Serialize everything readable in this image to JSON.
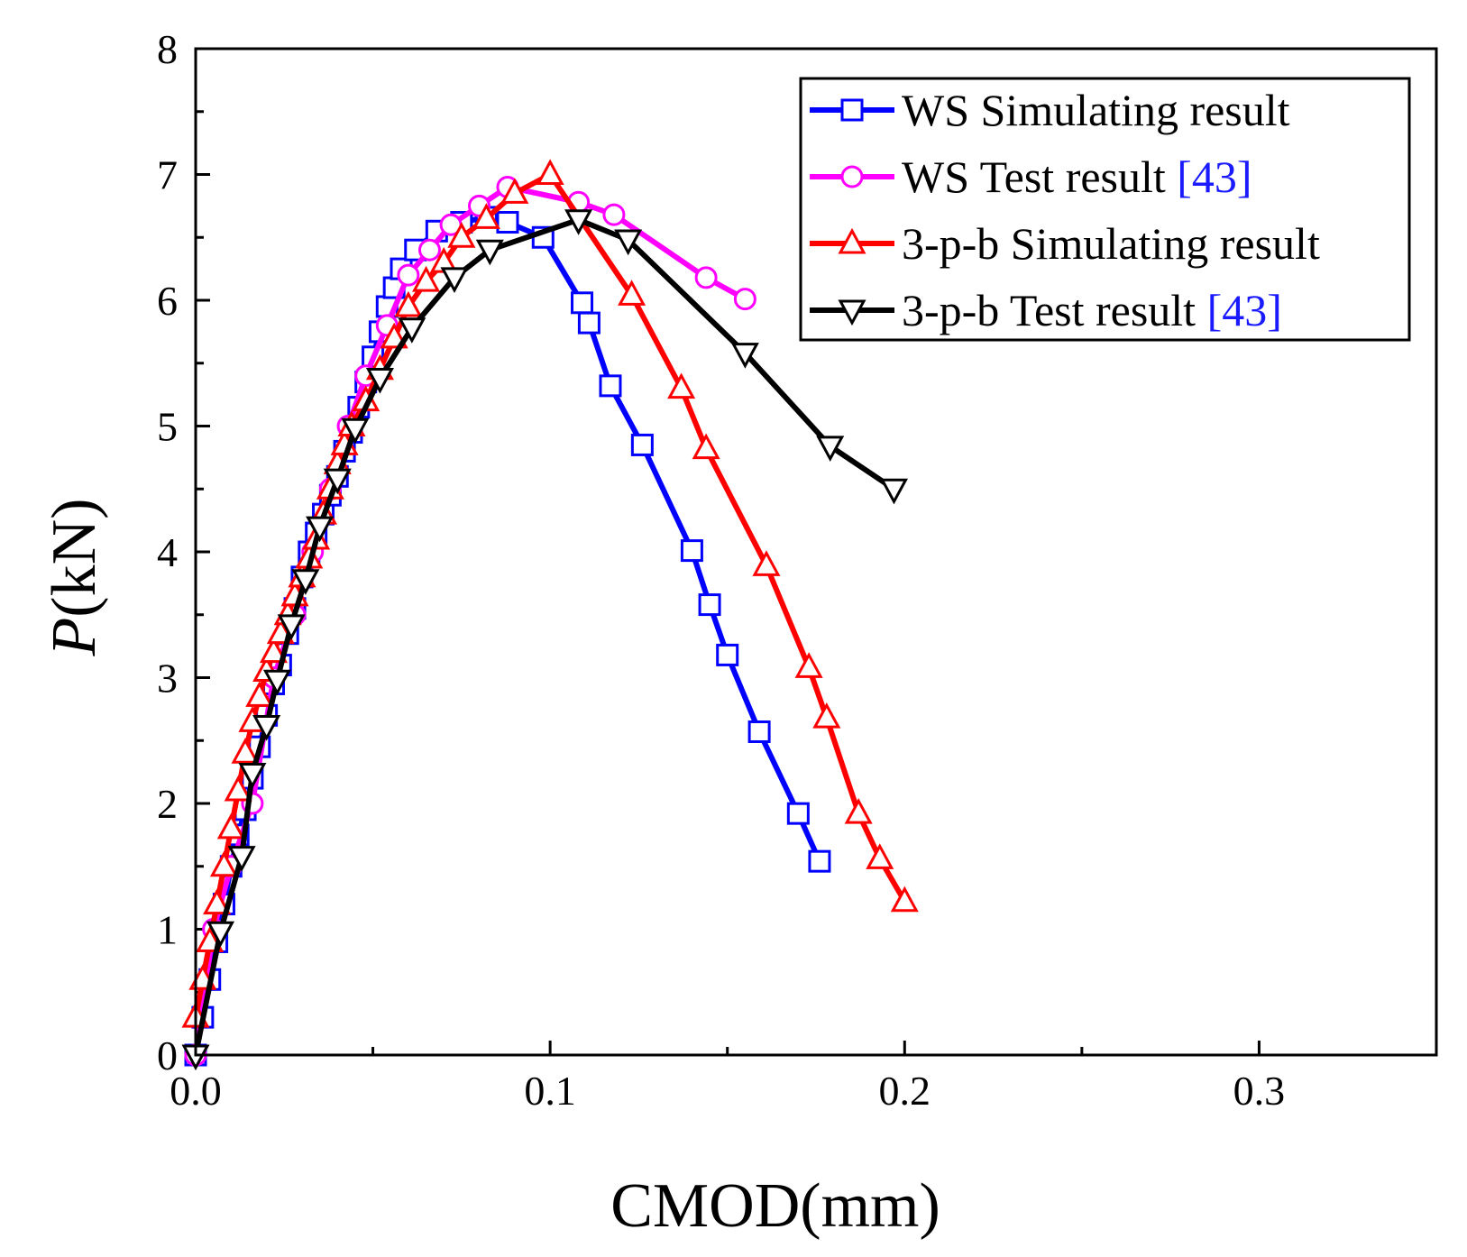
{
  "chart_data": {
    "type": "line",
    "xlabel": "CMOD(mm)",
    "ylabel_italic": "P",
    "ylabel_unit": "(kN)",
    "xlim": [
      0,
      0.35
    ],
    "ylim": [
      0,
      8
    ],
    "xticks": [
      0.0,
      0.1,
      0.2,
      0.3
    ],
    "xtick_labels": [
      "0.0",
      "0.1",
      "0.2",
      "0.3"
    ],
    "yticks": [
      0,
      1,
      2,
      3,
      4,
      5,
      6,
      7,
      8
    ],
    "ytick_labels": [
      "0",
      "1",
      "2",
      "3",
      "4",
      "5",
      "6",
      "7",
      "8"
    ],
    "x_minor_step": 0.05,
    "y_minor_step": 0.5,
    "legend_position": "top-right",
    "series": [
      {
        "name": "WS Simulating result",
        "ref": "",
        "color": "#0000ff",
        "marker": "square",
        "x": [
          0.0,
          0.002,
          0.004,
          0.006,
          0.008,
          0.01,
          0.012,
          0.014,
          0.016,
          0.018,
          0.02,
          0.022,
          0.024,
          0.026,
          0.028,
          0.03,
          0.032,
          0.034,
          0.036,
          0.038,
          0.04,
          0.042,
          0.044,
          0.046,
          0.048,
          0.05,
          0.052,
          0.054,
          0.056,
          0.058,
          0.062,
          0.068,
          0.075,
          0.082,
          0.088,
          0.098,
          0.109,
          0.111,
          0.117,
          0.126,
          0.14,
          0.145,
          0.15,
          0.159,
          0.17,
          0.176
        ],
        "y": [
          0.0,
          0.3,
          0.6,
          0.9,
          1.2,
          1.5,
          1.75,
          1.95,
          2.2,
          2.45,
          2.7,
          2.95,
          3.1,
          3.35,
          3.55,
          3.8,
          4.0,
          4.15,
          4.3,
          4.45,
          4.6,
          4.8,
          4.95,
          5.15,
          5.35,
          5.55,
          5.75,
          5.95,
          6.1,
          6.25,
          6.4,
          6.55,
          6.62,
          6.66,
          6.62,
          6.5,
          5.98,
          5.82,
          5.32,
          4.85,
          4.01,
          3.58,
          3.18,
          2.57,
          1.92,
          1.54
        ]
      },
      {
        "name": "WS Test result ",
        "ref": "[43]",
        "color": "#ff00ff",
        "marker": "circle",
        "x": [
          0.0,
          0.005,
          0.01,
          0.016,
          0.022,
          0.028,
          0.033,
          0.038,
          0.043,
          0.048,
          0.054,
          0.06,
          0.066,
          0.072,
          0.08,
          0.088,
          0.108,
          0.118,
          0.144,
          0.155
        ],
        "y": [
          0.0,
          1.0,
          1.5,
          2.0,
          3.0,
          3.5,
          4.0,
          4.5,
          5.0,
          5.4,
          5.8,
          6.2,
          6.4,
          6.6,
          6.75,
          6.9,
          6.78,
          6.68,
          6.18,
          6.01
        ]
      },
      {
        "name": "3-p-b Simulating result",
        "ref": "",
        "color": "#ff0000",
        "marker": "triangle-up",
        "x": [
          0.0,
          0.002,
          0.004,
          0.006,
          0.008,
          0.01,
          0.012,
          0.014,
          0.016,
          0.018,
          0.02,
          0.022,
          0.024,
          0.026,
          0.028,
          0.03,
          0.032,
          0.034,
          0.036,
          0.038,
          0.04,
          0.042,
          0.044,
          0.048,
          0.052,
          0.056,
          0.06,
          0.065,
          0.07,
          0.075,
          0.082,
          0.09,
          0.1,
          0.123,
          0.137,
          0.144,
          0.161,
          0.173,
          0.178,
          0.187,
          0.193,
          0.2
        ],
        "y": [
          0.3,
          0.6,
          0.9,
          1.2,
          1.5,
          1.8,
          2.1,
          2.4,
          2.65,
          2.85,
          3.05,
          3.2,
          3.35,
          3.5,
          3.65,
          3.8,
          3.95,
          4.1,
          4.3,
          4.5,
          4.7,
          4.85,
          5.0,
          5.2,
          5.45,
          5.7,
          5.95,
          6.15,
          6.3,
          6.5,
          6.65,
          6.85,
          7.0,
          6.04,
          5.3,
          4.82,
          3.89,
          3.08,
          2.68,
          1.92,
          1.56,
          1.22
        ]
      },
      {
        "name": "3-p-b Test result ",
        "ref": "[43]",
        "color": "#000000",
        "marker": "triangle-down",
        "x": [
          0.0,
          0.007,
          0.013,
          0.016,
          0.02,
          0.023,
          0.027,
          0.031,
          0.035,
          0.04,
          0.045,
          0.052,
          0.061,
          0.073,
          0.083,
          0.108,
          0.122,
          0.155,
          0.179,
          0.197
        ],
        "y": [
          0.0,
          0.98,
          1.58,
          2.24,
          2.62,
          2.98,
          3.42,
          3.78,
          4.2,
          4.58,
          4.98,
          5.38,
          5.78,
          6.18,
          6.4,
          6.64,
          6.48,
          5.58,
          4.84,
          4.5
        ]
      }
    ]
  }
}
